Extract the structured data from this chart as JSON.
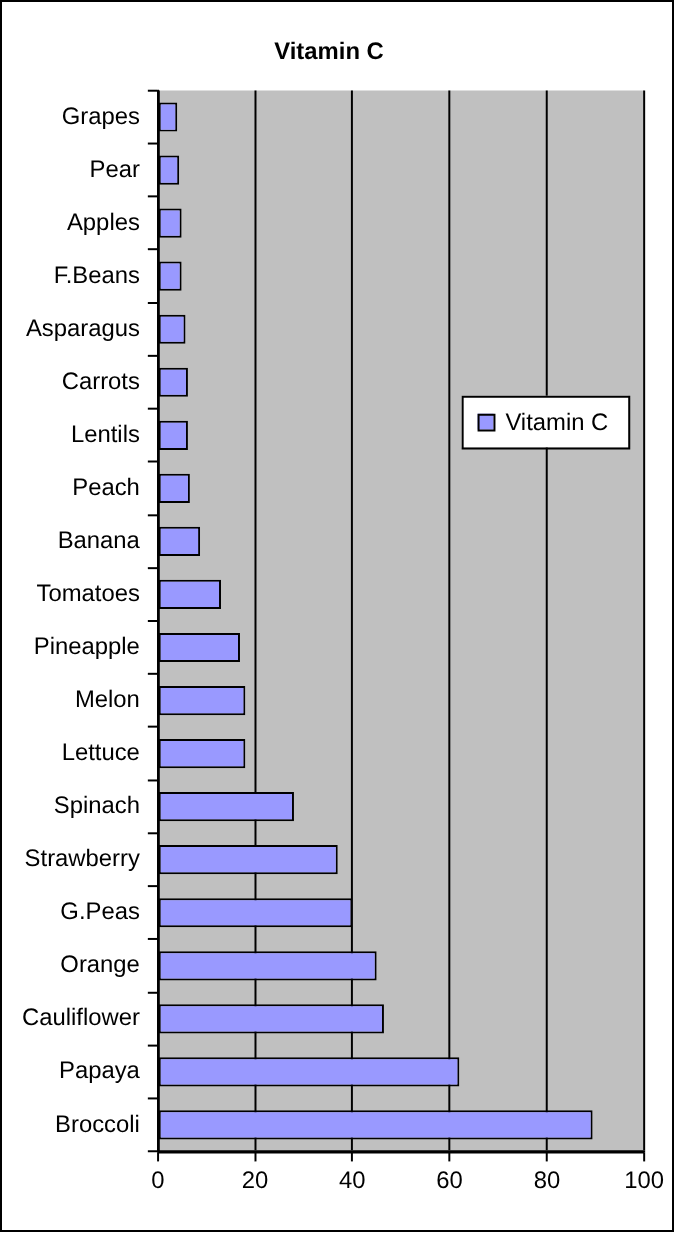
{
  "chart_data": {
    "type": "bar",
    "orientation": "horizontal",
    "title": "Vitamin C",
    "categories": [
      "Grapes",
      "Pear",
      "Apples",
      "F.Beans",
      "Asparagus",
      "Carrots",
      "Lentils",
      "Peach",
      "Banana",
      "Tomatoes",
      "Pineapple",
      "Melon",
      "Lettuce",
      "Spinach",
      "Strawberry",
      "G.Peas",
      "Orange",
      "Cauliflower",
      "Papaya",
      "Broccoli"
    ],
    "series": [
      {
        "name": "Vitamin C",
        "color": "#9999ff",
        "values": [
          4,
          4.4,
          4.9,
          4.9,
          5.7,
          6.2,
          6.2,
          6.6,
          8.7,
          13,
          16.9,
          18,
          18,
          28,
          37,
          40,
          45,
          46.5,
          62,
          89.4
        ]
      }
    ],
    "xlim": [
      0,
      100
    ],
    "xticks": [
      0,
      20,
      40,
      60,
      80,
      100
    ],
    "grid": "x",
    "legend": "right"
  }
}
